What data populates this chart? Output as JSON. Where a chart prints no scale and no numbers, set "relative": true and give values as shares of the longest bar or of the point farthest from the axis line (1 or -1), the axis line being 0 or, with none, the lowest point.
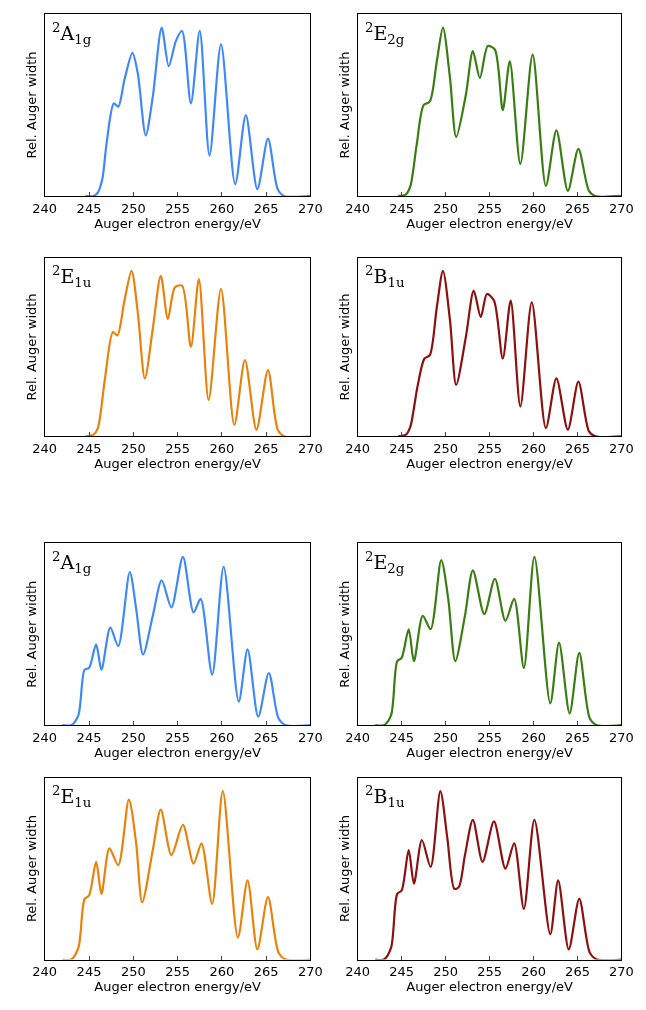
{
  "chart_data": [
    {
      "type": "line",
      "relative": true,
      "annotations": [
        "$^{2}$A$_{1g}$"
      ],
      "xlabel": "Auger electron energy/eV",
      "ylabel": "Rel. Auger width",
      "xlim": [
        240,
        270
      ],
      "xticks": [
        240,
        245,
        250,
        255,
        260,
        265,
        270
      ],
      "tick_labels": "x",
      "x": [
        244.6,
        245.5,
        246,
        246.5,
        247,
        247.8,
        248.3,
        249,
        249.9,
        250.5,
        251.4,
        252.2,
        253.2,
        254.0,
        254.8,
        255.5,
        256.5,
        257.5,
        258.6,
        259.9,
        261.5,
        262.7,
        264.0,
        265.2,
        266.3,
        267,
        270
      ],
      "series": [
        {
          "color": "#3f88f8",
          "values": [
            0,
            0,
            0.02,
            0.1,
            0.32,
            0.55,
            0.53,
            0.69,
            0.85,
            0.73,
            0.36,
            0.59,
            1.0,
            0.77,
            0.92,
            0.98,
            0.55,
            0.98,
            0.24,
            0.9,
            0.07,
            0.48,
            0.04,
            0.34,
            0.04,
            0,
            0
          ]
        }
      ]
    },
    {
      "type": "line",
      "relative": true,
      "annotations": [
        "$^{2}$E$_{2g}$"
      ],
      "xlabel": "Auger electron energy/eV",
      "ylabel": "Rel. Auger width",
      "xlim": [
        240,
        270
      ],
      "xticks": [
        240,
        245,
        250,
        255,
        260,
        265,
        270
      ],
      "tick_labels": "x",
      "x": [
        244.6,
        245.5,
        246,
        246.7,
        247.5,
        248.2,
        249,
        249.7,
        250.5,
        251.2,
        252.3,
        253.1,
        253.9,
        254.8,
        255.6,
        256.5,
        257.3,
        258.5,
        259.9,
        261.4,
        262.6,
        263.9,
        265.1,
        266.3,
        267,
        270
      ],
      "series": [
        {
          "color": "#3a7d12",
          "values": [
            0,
            0.01,
            0.06,
            0.3,
            0.54,
            0.56,
            0.8,
            1.0,
            0.7,
            0.35,
            0.6,
            0.86,
            0.7,
            0.89,
            0.87,
            0.51,
            0.8,
            0.19,
            0.84,
            0.06,
            0.39,
            0.03,
            0.28,
            0.03,
            0,
            0
          ]
        }
      ]
    },
    {
      "type": "line",
      "relative": true,
      "annotations": [
        "$^{2}$E$_{1u}$"
      ],
      "xlabel": "Auger electron energy/eV",
      "ylabel": "Rel. Auger width",
      "xlim": [
        240,
        270
      ],
      "xticks": [
        240,
        245,
        250,
        255,
        260,
        265,
        270
      ],
      "tick_labels": "x",
      "x": [
        244.6,
        245.5,
        246,
        246.8,
        247.7,
        248.2,
        249,
        249.8,
        250.5,
        251.3,
        252.2,
        253.1,
        253.9,
        254.7,
        255.5,
        256.5,
        257.4,
        258.5,
        259.9,
        261.4,
        262.6,
        263.9,
        265.2,
        266.3,
        267,
        270
      ],
      "series": [
        {
          "color": "#e8820c",
          "values": [
            0,
            0.01,
            0.05,
            0.35,
            0.63,
            0.61,
            0.82,
            1.0,
            0.75,
            0.35,
            0.65,
            0.97,
            0.71,
            0.9,
            0.91,
            0.54,
            0.95,
            0.22,
            0.89,
            0.07,
            0.46,
            0.04,
            0.4,
            0.04,
            0,
            0
          ]
        }
      ]
    },
    {
      "type": "line",
      "relative": true,
      "annotations": [
        "$^{2}$B$_{1u}$"
      ],
      "xlabel": "Auger electron energy/eV",
      "ylabel": "Rel. Auger width",
      "xlim": [
        240,
        270
      ],
      "xticks": [
        240,
        245,
        250,
        255,
        260,
        265,
        270
      ],
      "tick_labels": "x",
      "x": [
        244.6,
        245.5,
        246,
        246.8,
        247.6,
        248.2,
        249,
        249.7,
        250.5,
        251.2,
        252.3,
        253.2,
        254.0,
        254.7,
        255.5,
        256.5,
        257.4,
        258.5,
        259.8,
        261.4,
        262.6,
        263.9,
        265.1,
        266.3,
        267,
        270
      ],
      "series": [
        {
          "color": "#8b1010",
          "values": [
            0,
            0.01,
            0.06,
            0.3,
            0.47,
            0.49,
            0.78,
            1.0,
            0.7,
            0.31,
            0.6,
            0.88,
            0.72,
            0.86,
            0.82,
            0.47,
            0.82,
            0.18,
            0.81,
            0.05,
            0.35,
            0.04,
            0.33,
            0.03,
            0,
            0
          ]
        }
      ]
    },
    {
      "type": "line",
      "relative": true,
      "annotations": [
        "$^{2}$A$_{1g}$"
      ],
      "xlabel": "Auger electron energy/eV",
      "ylabel": "Rel. Auger width",
      "xlim": [
        240,
        270
      ],
      "xticks": [
        240,
        245,
        250,
        255,
        260,
        265,
        270
      ],
      "tick_labels": "x",
      "x": [
        242.0,
        243,
        243.8,
        244.5,
        245.0,
        245.8,
        246.4,
        247.4,
        248.3,
        249.6,
        250.3,
        251.1,
        252.2,
        253.2,
        254.3,
        255.6,
        256.8,
        257.6,
        258.9,
        260.2,
        261.9,
        262.9,
        264.1,
        265.3,
        266.4,
        267.2,
        270
      ],
      "series": [
        {
          "color": "#3f88f8",
          "values": [
            0,
            0,
            0.06,
            0.33,
            0.34,
            0.48,
            0.33,
            0.58,
            0.47,
            0.91,
            0.7,
            0.42,
            0.65,
            0.86,
            0.7,
            1.0,
            0.67,
            0.75,
            0.3,
            0.94,
            0.14,
            0.45,
            0.05,
            0.31,
            0.04,
            0,
            0
          ]
        }
      ]
    },
    {
      "type": "line",
      "relative": true,
      "annotations": [
        "$^{2}$E$_{2g}$"
      ],
      "xlabel": "Auger electron energy/eV",
      "ylabel": "Rel. Auger width",
      "xlim": [
        240,
        270
      ],
      "xticks": [
        240,
        245,
        250,
        255,
        260,
        265,
        270
      ],
      "tick_labels": "x",
      "x": [
        242.0,
        243,
        243.8,
        244.5,
        245.0,
        245.8,
        246.4,
        247.4,
        248.3,
        249.5,
        250.3,
        251.1,
        252.2,
        253.1,
        254.4,
        255.6,
        256.8,
        257.8,
        258.9,
        260.1,
        261.9,
        262.9,
        264.1,
        265.2,
        266.4,
        267.2,
        270
      ],
      "series": [
        {
          "color": "#3a7d12",
          "values": [
            0,
            0,
            0.06,
            0.38,
            0.4,
            0.57,
            0.38,
            0.65,
            0.57,
            0.98,
            0.75,
            0.38,
            0.65,
            0.92,
            0.66,
            0.87,
            0.62,
            0.75,
            0.34,
            1.0,
            0.13,
            0.49,
            0.07,
            0.43,
            0.04,
            0,
            0
          ]
        }
      ]
    },
    {
      "type": "line",
      "relative": true,
      "annotations": [
        "$^{2}$E$_{1u}$"
      ],
      "xlabel": "Auger electron energy/eV",
      "ylabel": "Rel. Auger width",
      "xlim": [
        240,
        270
      ],
      "xticks": [
        240,
        245,
        250,
        255,
        260,
        265,
        270
      ],
      "tick_labels": "x",
      "x": [
        242.0,
        243,
        243.8,
        244.5,
        245.0,
        245.8,
        246.4,
        247.3,
        248.3,
        249.5,
        250.3,
        251.0,
        252.2,
        253.1,
        254.3,
        255.6,
        256.8,
        257.7,
        258.9,
        260.1,
        261.8,
        262.9,
        264.0,
        265.2,
        266.4,
        267.2,
        270
      ],
      "series": [
        {
          "color": "#e8820c",
          "values": [
            0,
            0,
            0.07,
            0.36,
            0.38,
            0.58,
            0.39,
            0.66,
            0.56,
            0.95,
            0.7,
            0.34,
            0.65,
            0.89,
            0.62,
            0.8,
            0.57,
            0.69,
            0.33,
            1.0,
            0.13,
            0.47,
            0.06,
            0.37,
            0.04,
            0,
            0
          ]
        }
      ]
    },
    {
      "type": "line",
      "relative": true,
      "annotations": [
        "$^{2}$B$_{1u}$"
      ],
      "xlabel": "Auger electron energy/eV",
      "ylabel": "Rel. Auger width",
      "xlim": [
        240,
        270
      ],
      "xticks": [
        240,
        245,
        250,
        255,
        260,
        265,
        270
      ],
      "tick_labels": "x",
      "x": [
        242.0,
        243,
        243.8,
        244.5,
        245.0,
        245.8,
        246.4,
        247.3,
        248.3,
        249.4,
        250.2,
        251.0,
        251.5,
        252.2,
        253.1,
        254.2,
        255.5,
        256.8,
        257.8,
        258.9,
        260.1,
        261.9,
        262.8,
        264.0,
        265.2,
        266.4,
        267.2,
        270
      ],
      "series": [
        {
          "color": "#8b1010",
          "values": [
            0,
            0,
            0.07,
            0.39,
            0.41,
            0.65,
            0.45,
            0.71,
            0.55,
            1.0,
            0.72,
            0.42,
            0.43,
            0.62,
            0.83,
            0.58,
            0.82,
            0.54,
            0.69,
            0.3,
            0.83,
            0.15,
            0.47,
            0.06,
            0.36,
            0.04,
            0,
            0
          ]
        }
      ]
    }
  ]
}
